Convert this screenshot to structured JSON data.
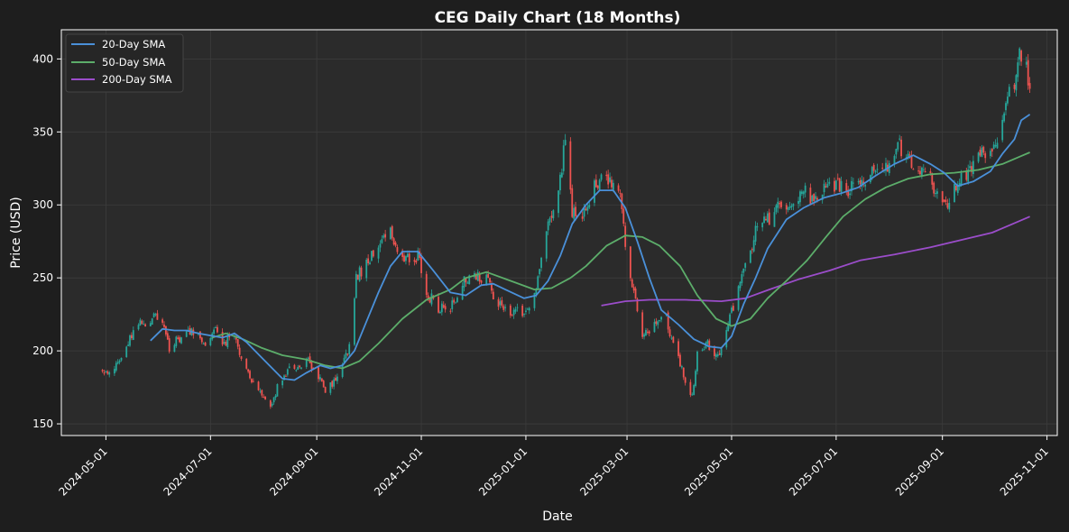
{
  "chart_data": {
    "type": "candlestick",
    "title": "CEG Daily Chart (18 Months)",
    "xlabel": "Date",
    "ylabel": "Price (USD)",
    "ylim": [
      142,
      420
    ],
    "xlim": [
      "2024-04-05",
      "2025-11-07"
    ],
    "grid": true,
    "legend_position": "top-left",
    "x_ticks": [
      "2024-05-01",
      "2024-07-01",
      "2024-09-01",
      "2024-11-01",
      "2025-01-01",
      "2025-03-01",
      "2025-05-01",
      "2025-07-01",
      "2025-09-01",
      "2025-11-01"
    ],
    "y_ticks": [
      150,
      200,
      250,
      300,
      350,
      400
    ],
    "colors": {
      "background": "#1e1e1e",
      "plot_background": "#2b2b2b",
      "grid": "#3c3c3c",
      "up": "#26a69a",
      "down": "#ef5350",
      "sma20": "#4a90d9",
      "sma50": "#5cad6a",
      "sma200": "#9b4dca"
    },
    "series": [
      {
        "name": "20-Day SMA",
        "key": "sma20"
      },
      {
        "name": "50-Day SMA",
        "key": "sma50"
      },
      {
        "name": "200-Day SMA",
        "key": "sma200"
      }
    ],
    "price_anchors": [
      [
        "2024-04-29",
        186
      ],
      [
        "2024-05-03",
        184
      ],
      [
        "2024-05-08",
        192
      ],
      [
        "2024-05-14",
        205
      ],
      [
        "2024-05-20",
        220
      ],
      [
        "2024-05-24",
        215
      ],
      [
        "2024-05-29",
        228
      ],
      [
        "2024-06-03",
        218
      ],
      [
        "2024-06-07",
        200
      ],
      [
        "2024-06-12",
        208
      ],
      [
        "2024-06-18",
        214
      ],
      [
        "2024-06-24",
        210
      ],
      [
        "2024-06-28",
        204
      ],
      [
        "2024-07-03",
        214
      ],
      [
        "2024-07-09",
        206
      ],
      [
        "2024-07-15",
        212
      ],
      [
        "2024-07-19",
        195
      ],
      [
        "2024-07-25",
        178
      ],
      [
        "2024-07-31",
        170
      ],
      [
        "2024-08-05",
        162
      ],
      [
        "2024-08-09",
        175
      ],
      [
        "2024-08-15",
        188
      ],
      [
        "2024-08-21",
        190
      ],
      [
        "2024-08-27",
        192
      ],
      [
        "2024-09-03",
        182
      ],
      [
        "2024-09-06",
        174
      ],
      [
        "2024-09-11",
        178
      ],
      [
        "2024-09-16",
        190
      ],
      [
        "2024-09-20",
        203
      ],
      [
        "2024-09-24",
        250
      ],
      [
        "2024-09-30",
        260
      ],
      [
        "2024-10-04",
        266
      ],
      [
        "2024-10-09",
        275
      ],
      [
        "2024-10-14",
        280
      ],
      [
        "2024-10-18",
        270
      ],
      [
        "2024-10-24",
        262
      ],
      [
        "2024-10-30",
        265
      ],
      [
        "2024-11-05",
        238
      ],
      [
        "2024-11-11",
        230
      ],
      [
        "2024-11-18",
        228
      ],
      [
        "2024-11-22",
        240
      ],
      [
        "2024-11-27",
        250
      ],
      [
        "2024-12-03",
        252
      ],
      [
        "2024-12-09",
        250
      ],
      [
        "2024-12-13",
        236
      ],
      [
        "2024-12-19",
        228
      ],
      [
        "2024-12-26",
        226
      ],
      [
        "2025-01-02",
        226
      ],
      [
        "2025-01-07",
        240
      ],
      [
        "2025-01-10",
        265
      ],
      [
        "2025-01-15",
        290
      ],
      [
        "2025-01-21",
        318
      ],
      [
        "2025-01-24",
        345
      ],
      [
        "2025-01-28",
        295
      ],
      [
        "2025-02-03",
        295
      ],
      [
        "2025-02-10",
        312
      ],
      [
        "2025-02-14",
        316
      ],
      [
        "2025-02-20",
        315
      ],
      [
        "2025-02-25",
        312
      ],
      [
        "2025-02-28",
        270
      ],
      [
        "2025-03-04",
        245
      ],
      [
        "2025-03-10",
        210
      ],
      [
        "2025-03-17",
        220
      ],
      [
        "2025-03-24",
        222
      ],
      [
        "2025-03-28",
        205
      ],
      [
        "2025-04-04",
        180
      ],
      [
        "2025-04-08",
        168
      ],
      [
        "2025-04-11",
        200
      ],
      [
        "2025-04-17",
        205
      ],
      [
        "2025-04-24",
        195
      ],
      [
        "2025-04-30",
        222
      ],
      [
        "2025-05-06",
        245
      ],
      [
        "2025-05-12",
        270
      ],
      [
        "2025-05-16",
        285
      ],
      [
        "2025-05-23",
        290
      ],
      [
        "2025-05-30",
        300
      ],
      [
        "2025-06-06",
        298
      ],
      [
        "2025-06-12",
        312
      ],
      [
        "2025-06-18",
        300
      ],
      [
        "2025-06-25",
        312
      ],
      [
        "2025-07-02",
        315
      ],
      [
        "2025-07-09",
        310
      ],
      [
        "2025-07-16",
        318
      ],
      [
        "2025-07-23",
        322
      ],
      [
        "2025-07-30",
        325
      ],
      [
        "2025-08-05",
        342
      ],
      [
        "2025-08-11",
        335
      ],
      [
        "2025-08-18",
        322
      ],
      [
        "2025-08-25",
        318
      ],
      [
        "2025-08-29",
        305
      ],
      [
        "2025-09-05",
        300
      ],
      [
        "2025-09-11",
        318
      ],
      [
        "2025-09-17",
        322
      ],
      [
        "2025-09-23",
        335
      ],
      [
        "2025-09-29",
        335
      ],
      [
        "2025-10-03",
        345
      ],
      [
        "2025-10-08",
        368
      ],
      [
        "2025-10-13",
        385
      ],
      [
        "2025-10-16",
        402
      ],
      [
        "2025-10-20",
        392
      ],
      [
        "2025-10-22",
        382
      ]
    ],
    "sma20_anchors": [
      [
        "2024-05-27",
        207
      ],
      [
        "2024-06-03",
        215
      ],
      [
        "2024-06-10",
        214
      ],
      [
        "2024-06-17",
        214
      ],
      [
        "2024-06-24",
        212
      ],
      [
        "2024-07-08",
        209
      ],
      [
        "2024-07-15",
        212
      ],
      [
        "2024-07-22",
        206
      ],
      [
        "2024-08-01",
        194
      ],
      [
        "2024-08-12",
        181
      ],
      [
        "2024-08-19",
        180
      ],
      [
        "2024-08-26",
        185
      ],
      [
        "2024-09-03",
        190
      ],
      [
        "2024-09-09",
        188
      ],
      [
        "2024-09-16",
        190
      ],
      [
        "2024-09-23",
        200
      ],
      [
        "2024-09-30",
        220
      ],
      [
        "2024-10-07",
        240
      ],
      [
        "2024-10-14",
        258
      ],
      [
        "2024-10-21",
        268
      ],
      [
        "2024-10-30",
        268
      ],
      [
        "2024-11-08",
        255
      ],
      [
        "2024-11-18",
        240
      ],
      [
        "2024-11-27",
        238
      ],
      [
        "2024-12-06",
        245
      ],
      [
        "2024-12-13",
        246
      ],
      [
        "2024-12-20",
        242
      ],
      [
        "2024-12-31",
        236
      ],
      [
        "2025-01-07",
        238
      ],
      [
        "2025-01-14",
        248
      ],
      [
        "2025-01-21",
        265
      ],
      [
        "2025-01-28",
        287
      ],
      [
        "2025-02-05",
        300
      ],
      [
        "2025-02-13",
        310
      ],
      [
        "2025-02-21",
        310
      ],
      [
        "2025-02-28",
        298
      ],
      [
        "2025-03-07",
        275
      ],
      [
        "2025-03-14",
        250
      ],
      [
        "2025-03-21",
        228
      ],
      [
        "2025-03-31",
        218
      ],
      [
        "2025-04-09",
        208
      ],
      [
        "2025-04-18",
        203
      ],
      [
        "2025-04-25",
        202
      ],
      [
        "2025-05-01",
        210
      ],
      [
        "2025-05-08",
        232
      ],
      [
        "2025-05-15",
        250
      ],
      [
        "2025-05-22",
        270
      ],
      [
        "2025-06-02",
        290
      ],
      [
        "2025-06-12",
        298
      ],
      [
        "2025-06-24",
        305
      ],
      [
        "2025-07-04",
        308
      ],
      [
        "2025-07-14",
        312
      ],
      [
        "2025-07-24",
        320
      ],
      [
        "2025-08-04",
        328
      ],
      [
        "2025-08-15",
        334
      ],
      [
        "2025-08-25",
        328
      ],
      [
        "2025-09-02",
        322
      ],
      [
        "2025-09-10",
        313
      ],
      [
        "2025-09-19",
        316
      ],
      [
        "2025-09-29",
        323
      ],
      [
        "2025-10-06",
        335
      ],
      [
        "2025-10-13",
        345
      ],
      [
        "2025-10-17",
        358
      ],
      [
        "2025-10-22",
        362
      ]
    ],
    "sma50_anchors": [
      [
        "2024-07-02",
        209
      ],
      [
        "2024-07-10",
        212
      ],
      [
        "2024-07-20",
        208
      ],
      [
        "2024-07-31",
        202
      ],
      [
        "2024-08-12",
        197
      ],
      [
        "2024-08-26",
        194
      ],
      [
        "2024-09-06",
        190
      ],
      [
        "2024-09-16",
        188
      ],
      [
        "2024-09-26",
        193
      ],
      [
        "2024-10-07",
        205
      ],
      [
        "2024-10-21",
        222
      ],
      [
        "2024-11-04",
        235
      ],
      [
        "2024-11-18",
        242
      ],
      [
        "2024-11-27",
        250
      ],
      [
        "2024-12-09",
        254
      ],
      [
        "2024-12-23",
        248
      ],
      [
        "2025-01-06",
        242
      ],
      [
        "2025-01-16",
        243
      ],
      [
        "2025-01-27",
        250
      ],
      [
        "2025-02-05",
        258
      ],
      [
        "2025-02-17",
        272
      ],
      [
        "2025-02-28",
        279
      ],
      [
        "2025-03-10",
        278
      ],
      [
        "2025-03-20",
        272
      ],
      [
        "2025-04-01",
        258
      ],
      [
        "2025-04-11",
        238
      ],
      [
        "2025-04-22",
        222
      ],
      [
        "2025-05-01",
        217
      ],
      [
        "2025-05-12",
        222
      ],
      [
        "2025-05-22",
        236
      ],
      [
        "2025-06-02",
        248
      ],
      [
        "2025-06-14",
        262
      ],
      [
        "2025-06-25",
        278
      ],
      [
        "2025-07-05",
        292
      ],
      [
        "2025-07-18",
        304
      ],
      [
        "2025-07-30",
        312
      ],
      [
        "2025-08-12",
        318
      ],
      [
        "2025-08-25",
        321
      ],
      [
        "2025-09-08",
        322
      ],
      [
        "2025-09-22",
        324
      ],
      [
        "2025-10-06",
        328
      ],
      [
        "2025-10-16",
        333
      ],
      [
        "2025-10-22",
        336
      ]
    ],
    "sma200_anchors": [
      [
        "2025-02-14",
        231
      ],
      [
        "2025-02-28",
        234
      ],
      [
        "2025-03-14",
        235
      ],
      [
        "2025-04-04",
        235
      ],
      [
        "2025-04-25",
        234
      ],
      [
        "2025-05-09",
        236
      ],
      [
        "2025-05-23",
        242
      ],
      [
        "2025-06-09",
        249
      ],
      [
        "2025-06-27",
        255
      ],
      [
        "2025-07-15",
        262
      ],
      [
        "2025-08-04",
        266
      ],
      [
        "2025-08-25",
        271
      ],
      [
        "2025-09-12",
        276
      ],
      [
        "2025-09-30",
        281
      ],
      [
        "2025-10-10",
        286
      ],
      [
        "2025-10-22",
        292
      ]
    ]
  }
}
